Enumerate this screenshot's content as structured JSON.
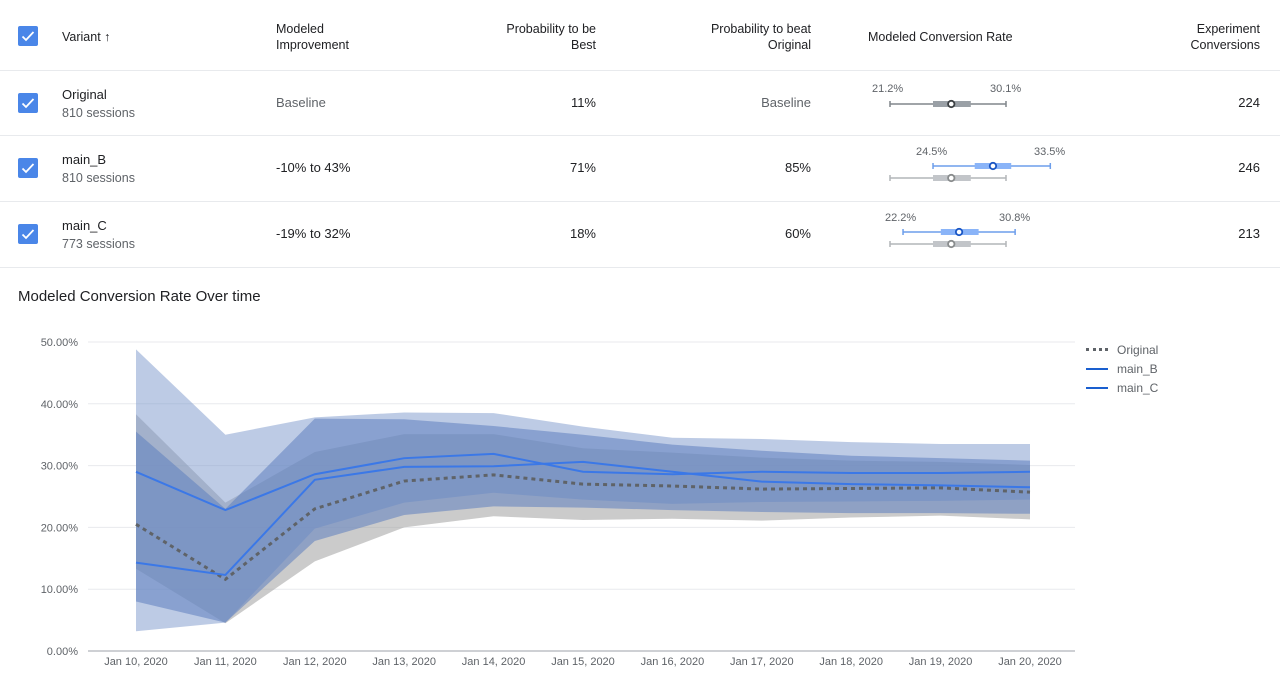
{
  "table": {
    "headers": {
      "variant": "Variant",
      "sort_icon": "arrow-up-icon",
      "modeled_improvement": [
        "Modeled",
        "Improvement"
      ],
      "prob_best": [
        "Probability to be",
        "Best"
      ],
      "prob_beat": [
        "Probability to beat",
        "Original"
      ],
      "modeled_rate": "Modeled Conversion Rate",
      "conversions": [
        "Experiment",
        "Conversions"
      ]
    },
    "rows": [
      {
        "name": "Original",
        "sessions": "810 sessions",
        "improvement": "Baseline",
        "prob_best": "11%",
        "prob_beat": "Baseline",
        "ci_low": "21.2%",
        "ci_high": "30.1%",
        "conversions": "224"
      },
      {
        "name": "main_B",
        "sessions": "810 sessions",
        "improvement": "-10% to 43%",
        "prob_best": "71%",
        "prob_beat": "85%",
        "ci_low": "24.5%",
        "ci_high": "33.5%",
        "conversions": "246"
      },
      {
        "name": "main_C",
        "sessions": "773 sessions",
        "improvement": "-19% to 32%",
        "prob_best": "18%",
        "prob_beat": "60%",
        "ci_low": "22.2%",
        "ci_high": "30.8%",
        "conversions": "213"
      }
    ],
    "intervals": {
      "Original": {
        "low": 21.2,
        "q1": 24.5,
        "mid": 25.9,
        "q3": 27.4,
        "high": 30.1
      },
      "main_B": {
        "low": 24.5,
        "q1": 27.7,
        "mid": 29.1,
        "q3": 30.5,
        "high": 33.5
      },
      "main_C": {
        "low": 22.2,
        "q1": 25.1,
        "mid": 26.5,
        "q3": 28.0,
        "high": 30.8
      }
    }
  },
  "colors": {
    "checkbox": "#4a86e8",
    "original": "#5f6368",
    "variant_line": "#3b78e7",
    "original_band": "#a0a0a0",
    "variant_band": "#7b98cc"
  },
  "chart_data": {
    "type": "line",
    "title": "Modeled Conversion Rate Over time",
    "xlabel": "",
    "ylabel": "",
    "ylim": [
      0,
      50
    ],
    "yticks": [
      "0.00%",
      "10.00%",
      "20.00%",
      "30.00%",
      "40.00%",
      "50.00%"
    ],
    "ytick_values": [
      0,
      10,
      20,
      30,
      40,
      50
    ],
    "categories": [
      "Jan 10, 2020",
      "Jan 11, 2020",
      "Jan 12, 2020",
      "Jan 13, 2020",
      "Jan 14, 2020",
      "Jan 15, 2020",
      "Jan 16, 2020",
      "Jan 17, 2020",
      "Jan 18, 2020",
      "Jan 19, 2020",
      "Jan 20, 2020"
    ],
    "grid": true,
    "legend_position": "right",
    "series": [
      {
        "name": "Original",
        "style": "dotted",
        "values": [
          20.5,
          11.6,
          23.0,
          27.5,
          28.5,
          27.0,
          26.7,
          26.2,
          26.3,
          26.4,
          25.7
        ],
        "band_low": [
          13.3,
          4.5,
          14.5,
          20.0,
          21.8,
          21.2,
          21.4,
          21.1,
          21.6,
          21.9,
          21.3
        ],
        "band_high": [
          38.3,
          24.0,
          32.2,
          35.1,
          35.1,
          32.8,
          32.1,
          31.3,
          30.8,
          30.6,
          30.1
        ]
      },
      {
        "name": "main_B",
        "style": "solid",
        "values": [
          29.0,
          22.8,
          28.6,
          31.2,
          31.9,
          29.0,
          28.6,
          29.0,
          28.8,
          28.8,
          29.0
        ],
        "band_low": [
          3.2,
          4.6,
          19.8,
          24.0,
          25.6,
          24.5,
          23.8,
          24.1,
          24.2,
          24.3,
          24.5
        ],
        "band_high": [
          48.8,
          35.0,
          37.8,
          38.6,
          38.5,
          36.3,
          34.5,
          34.3,
          33.8,
          33.5,
          33.5
        ]
      },
      {
        "name": "main_C",
        "style": "solid",
        "values": [
          14.3,
          12.3,
          27.7,
          29.8,
          29.9,
          30.6,
          29.0,
          27.4,
          27.0,
          26.8,
          26.5
        ],
        "band_low": [
          8.0,
          4.6,
          17.8,
          22.0,
          23.4,
          23.2,
          22.8,
          22.5,
          22.3,
          22.3,
          22.2
        ],
        "band_high": [
          35.5,
          23.0,
          37.6,
          37.5,
          36.4,
          35.0,
          33.4,
          32.4,
          31.6,
          31.2,
          30.8
        ]
      }
    ]
  }
}
